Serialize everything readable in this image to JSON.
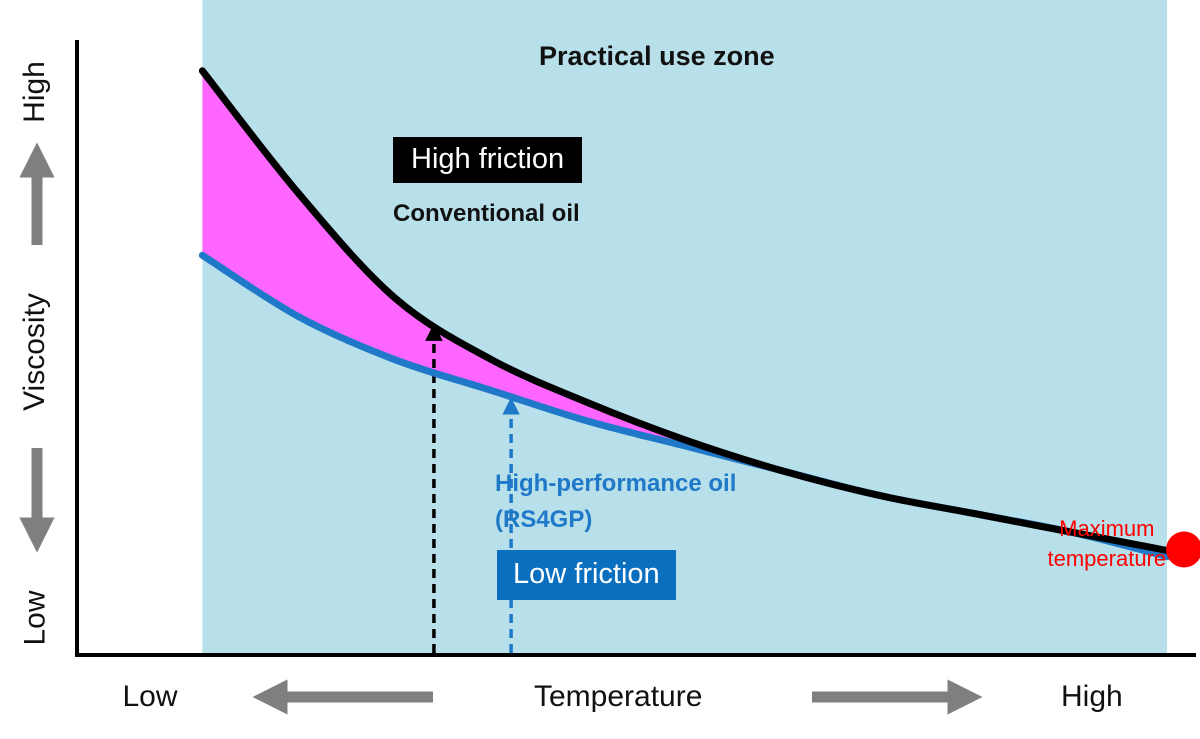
{
  "chart_data": {
    "type": "line",
    "title": "Practical use zone",
    "xlabel": "Temperature",
    "ylabel": "Viscosity",
    "x_ticks": {
      "low": "Low",
      "high": "High"
    },
    "y_ticks": {
      "low": "Low",
      "high": "High"
    },
    "x": [
      0,
      0.1,
      0.2,
      0.3,
      0.4,
      0.5,
      0.6,
      0.7,
      0.8,
      0.9,
      1.0
    ],
    "xlim": [
      -0.13,
      1.03
    ],
    "ylim": [
      0,
      1
    ],
    "series": [
      {
        "name": "Conventional oil",
        "color": "#000000",
        "values": [
          0.95,
          0.75,
          0.58,
          0.48,
          0.41,
          0.35,
          0.3,
          0.26,
          0.23,
          0.2,
          0.17
        ]
      },
      {
        "name": "High-performance oil (RS4GP)",
        "color": "#1f78c8",
        "values": [
          0.65,
          0.55,
          0.48,
          0.43,
          0.38,
          0.34,
          0.3,
          0.26,
          0.23,
          0.2,
          0.16
        ]
      }
    ],
    "fill_between_color": "#ff66ff",
    "zone": {
      "x_start": 0,
      "x_end": 1.0,
      "color": "#b8e0ea"
    },
    "marker": {
      "label": "Maximum temperature",
      "x": 1.0,
      "y": 0.165,
      "color": "#ff0000"
    },
    "reference_arrows": [
      {
        "x": 0.24,
        "series": "Conventional oil",
        "color": "#000000"
      },
      {
        "x": 0.32,
        "series": "High-performance oil (RS4GP)",
        "color": "#1f78c8"
      }
    ],
    "annotations": {
      "high_friction": "High friction",
      "conventional_oil": "Conventional oil",
      "high_performance_oil_line1": "High-performance oil",
      "high_performance_oil_line2": "(RS4GP)",
      "low_friction": "Low friction",
      "maximum_temperature_line1": "Maximum",
      "maximum_temperature_line2": "temperature"
    },
    "colors": {
      "zone": "#b8e0ea",
      "fill": "#ff66ff",
      "conventional": "#000000",
      "performance": "#1f78c8",
      "performance_box": "#0b6fbf",
      "marker": "#ff0000",
      "arrow_gray": "#7f7f7f"
    }
  }
}
